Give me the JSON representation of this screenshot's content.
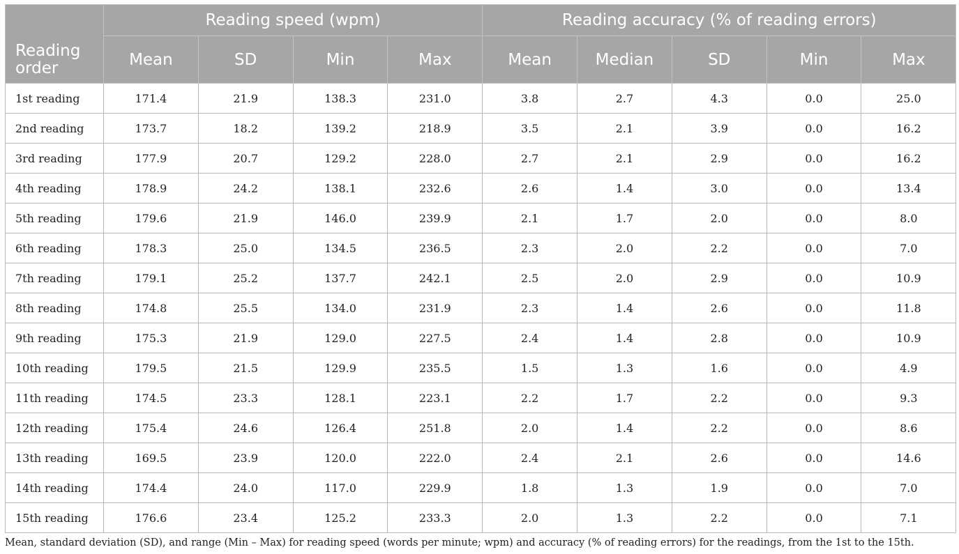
{
  "table": {
    "group_headers": [
      "Reading speed (wpm)",
      "Reading accuracy (% of reading errors)"
    ],
    "row_header_label": "Reading order",
    "speed_columns": [
      "Mean",
      "SD",
      "Min",
      "Max"
    ],
    "accuracy_columns": [
      "Mean",
      "Median",
      "SD",
      "Min",
      "Max"
    ],
    "rows": [
      {
        "label": "1st reading",
        "values": [
          "171.4",
          "21.9",
          "138.3",
          "231.0",
          "3.8",
          "2.7",
          "4.3",
          "0.0",
          "25.0"
        ]
      },
      {
        "label": "2nd reading",
        "values": [
          "173.7",
          "18.2",
          "139.2",
          "218.9",
          "3.5",
          "2.1",
          "3.9",
          "0.0",
          "16.2"
        ]
      },
      {
        "label": "3rd reading",
        "values": [
          "177.9",
          "20.7",
          "129.2",
          "228.0",
          "2.7",
          "2.1",
          "2.9",
          "0.0",
          "16.2"
        ]
      },
      {
        "label": "4th reading",
        "values": [
          "178.9",
          "24.2",
          "138.1",
          "232.6",
          "2.6",
          "1.4",
          "3.0",
          "0.0",
          "13.4"
        ]
      },
      {
        "label": "5th reading",
        "values": [
          "179.6",
          "21.9",
          "146.0",
          "239.9",
          "2.1",
          "1.7",
          "2.0",
          "0.0",
          "8.0"
        ]
      },
      {
        "label": "6th reading",
        "values": [
          "178.3",
          "25.0",
          "134.5",
          "236.5",
          "2.3",
          "2.0",
          "2.2",
          "0.0",
          "7.0"
        ]
      },
      {
        "label": "7th reading",
        "values": [
          "179.1",
          "25.2",
          "137.7",
          "242.1",
          "2.5",
          "2.0",
          "2.9",
          "0.0",
          "10.9"
        ]
      },
      {
        "label": "8th reading",
        "values": [
          "174.8",
          "25.5",
          "134.0",
          "231.9",
          "2.3",
          "1.4",
          "2.6",
          "0.0",
          "11.8"
        ]
      },
      {
        "label": "9th reading",
        "values": [
          "175.3",
          "21.9",
          "129.0",
          "227.5",
          "2.4",
          "1.4",
          "2.8",
          "0.0",
          "10.9"
        ]
      },
      {
        "label": "10th reading",
        "values": [
          "179.5",
          "21.5",
          "129.9",
          "235.5",
          "1.5",
          "1.3",
          "1.6",
          "0.0",
          "4.9"
        ]
      },
      {
        "label": "11th reading",
        "values": [
          "174.5",
          "23.3",
          "128.1",
          "223.1",
          "2.2",
          "1.7",
          "2.2",
          "0.0",
          "9.3"
        ]
      },
      {
        "label": "12th reading",
        "values": [
          "175.4",
          "24.6",
          "126.4",
          "251.8",
          "2.0",
          "1.4",
          "2.2",
          "0.0",
          "8.6"
        ]
      },
      {
        "label": "13th reading",
        "values": [
          "169.5",
          "23.9",
          "120.0",
          "222.0",
          "2.4",
          "2.1",
          "2.6",
          "0.0",
          "14.6"
        ]
      },
      {
        "label": "14th reading",
        "values": [
          "174.4",
          "24.0",
          "117.0",
          "229.9",
          "1.8",
          "1.3",
          "1.9",
          "0.0",
          "7.0"
        ]
      },
      {
        "label": "15th reading",
        "values": [
          "176.6",
          "23.4",
          "125.2",
          "233.3",
          "2.0",
          "1.3",
          "2.2",
          "0.0",
          "7.1"
        ]
      }
    ]
  },
  "caption": "Mean, standard deviation (SD), and range (Min – Max) for reading speed (words per minute; wpm) and accuracy (% of reading errors) for the readings, from the 1st to the 15th.",
  "colors": {
    "header_bg": "#a6a6a6",
    "header_text": "#ffffff",
    "grid": "#b9b9b9"
  }
}
